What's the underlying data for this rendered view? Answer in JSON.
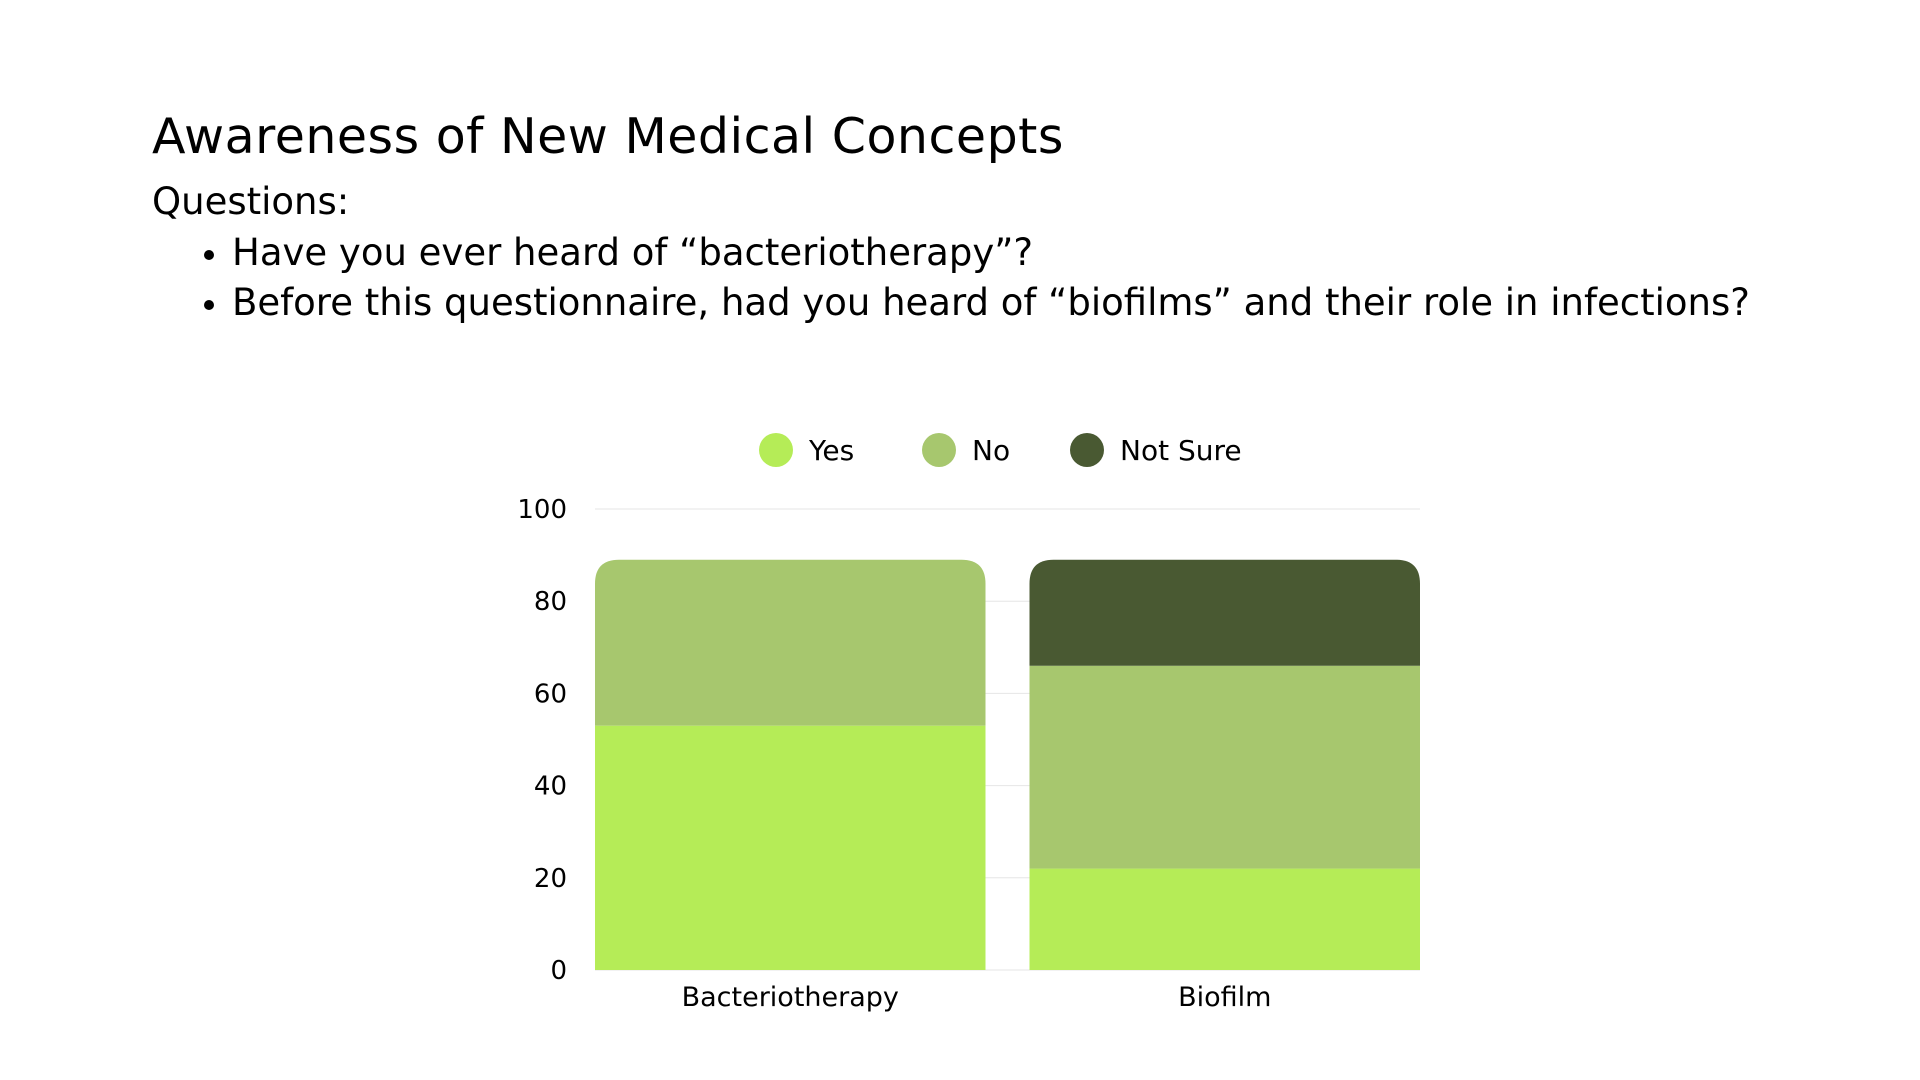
{
  "slide": {
    "title": "Awareness of New Medical Concepts",
    "questions_heading": "Questions:",
    "questions": [
      "Have you ever heard of “bacteriotherapy”?",
      "Before this questionnaire, had you heard of “biofilms” and their role in infections?"
    ]
  },
  "chart_data": {
    "type": "bar",
    "stacked": true,
    "categories": [
      "Bacteriotherapy",
      "Biofilm"
    ],
    "series": [
      {
        "name": "Yes",
        "color": "#b5ec57",
        "values": [
          53,
          22
        ]
      },
      {
        "name": "No",
        "color": "#a7c76e",
        "values": [
          36,
          44
        ]
      },
      {
        "name": "Not Sure",
        "color": "#495932",
        "values": [
          0,
          23
        ]
      }
    ],
    "ylim": [
      0,
      100
    ],
    "yticks": [
      0,
      20,
      40,
      60,
      80,
      100
    ],
    "grid": true,
    "legend": "top-center",
    "title": "",
    "xlabel": "",
    "ylabel": ""
  }
}
